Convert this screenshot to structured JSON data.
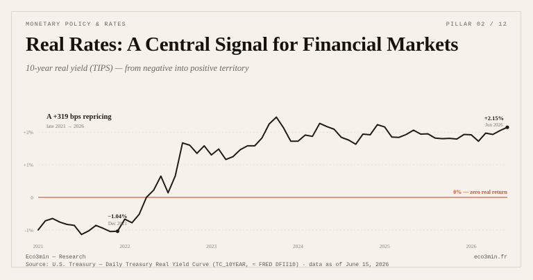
{
  "header": {
    "kicker": "MONETARY POLICY & RATES",
    "pillar": "PILLAR 02 / 12"
  },
  "title": "Real Rates: A Central Signal for Financial Markets",
  "subtitle": "10-year real yield (TIPS) — from negative into positive territory",
  "footer": {
    "left": "Eco3min — Research",
    "right": "eco3min.fr",
    "source": "Source: U.S. Treasury — Daily Treasury Real Yield Curve (TC_10YEAR, ≈ FRED DFII10) · data as of June 15, 2026"
  },
  "colors": {
    "line": "#1f1b16",
    "zero_line": "#c0573a",
    "grid": "#e3ddd2",
    "background": "#f6f2eb"
  },
  "chart_data": {
    "type": "line",
    "ylim": [
      -1.3,
      2.9
    ],
    "yticks": [
      -1,
      0,
      1,
      2
    ],
    "ytick_labels": [
      "-1%",
      "0",
      "+1%",
      "+2%"
    ],
    "xticks": [
      "2021",
      "2022",
      "2023",
      "2024",
      "2025",
      "2026"
    ],
    "xlim": [
      "2021-01",
      "2026-06"
    ],
    "grid": true,
    "x": [
      "2021-01",
      "2021-02",
      "2021-03",
      "2021-04",
      "2021-05",
      "2021-06",
      "2021-07",
      "2021-08",
      "2021-09",
      "2021-10",
      "2021-11",
      "2021-12",
      "2022-01",
      "2022-02",
      "2022-03",
      "2022-04",
      "2022-05",
      "2022-06",
      "2022-07",
      "2022-08",
      "2022-09",
      "2022-10",
      "2022-11",
      "2022-12",
      "2023-01",
      "2023-02",
      "2023-03",
      "2023-04",
      "2023-05",
      "2023-06",
      "2023-07",
      "2023-08",
      "2023-09",
      "2023-10",
      "2023-11",
      "2023-12",
      "2024-01",
      "2024-02",
      "2024-03",
      "2024-04",
      "2024-05",
      "2024-06",
      "2024-07",
      "2024-08",
      "2024-09",
      "2024-10",
      "2024-11",
      "2024-12",
      "2025-01",
      "2025-02",
      "2025-03",
      "2025-04",
      "2025-05",
      "2025-06",
      "2025-07",
      "2025-08",
      "2025-09",
      "2025-10",
      "2025-11",
      "2025-12",
      "2026-01",
      "2026-02",
      "2026-03",
      "2026-04",
      "2026-05",
      "2026-06"
    ],
    "values": [
      -1.0,
      -0.72,
      -0.65,
      -0.76,
      -0.83,
      -0.86,
      -1.14,
      -1.03,
      -0.86,
      -0.95,
      -1.05,
      -1.04,
      -0.67,
      -0.78,
      -0.52,
      0.0,
      0.22,
      0.65,
      0.14,
      0.66,
      1.67,
      1.6,
      1.35,
      1.58,
      1.3,
      1.48,
      1.16,
      1.25,
      1.46,
      1.58,
      1.58,
      1.82,
      2.25,
      2.46,
      2.13,
      1.72,
      1.72,
      1.91,
      1.87,
      2.27,
      2.17,
      2.09,
      1.84,
      1.76,
      1.63,
      1.94,
      1.92,
      2.23,
      2.16,
      1.85,
      1.84,
      1.93,
      2.06,
      1.94,
      1.95,
      1.82,
      1.8,
      1.81,
      1.79,
      1.93,
      1.92,
      1.72,
      1.97,
      1.93,
      2.05,
      2.15
    ],
    "zero_line_label": "0% — zero real return",
    "annotations": {
      "headline": "A +319 bps repricing",
      "headline_sub": "late 2021 → 2026",
      "low_value": "−1.04%",
      "low_date": "Dec 2021",
      "low_index": 11,
      "end_value": "+2.15%",
      "end_date": "Jun 2026",
      "end_index": 65
    }
  }
}
